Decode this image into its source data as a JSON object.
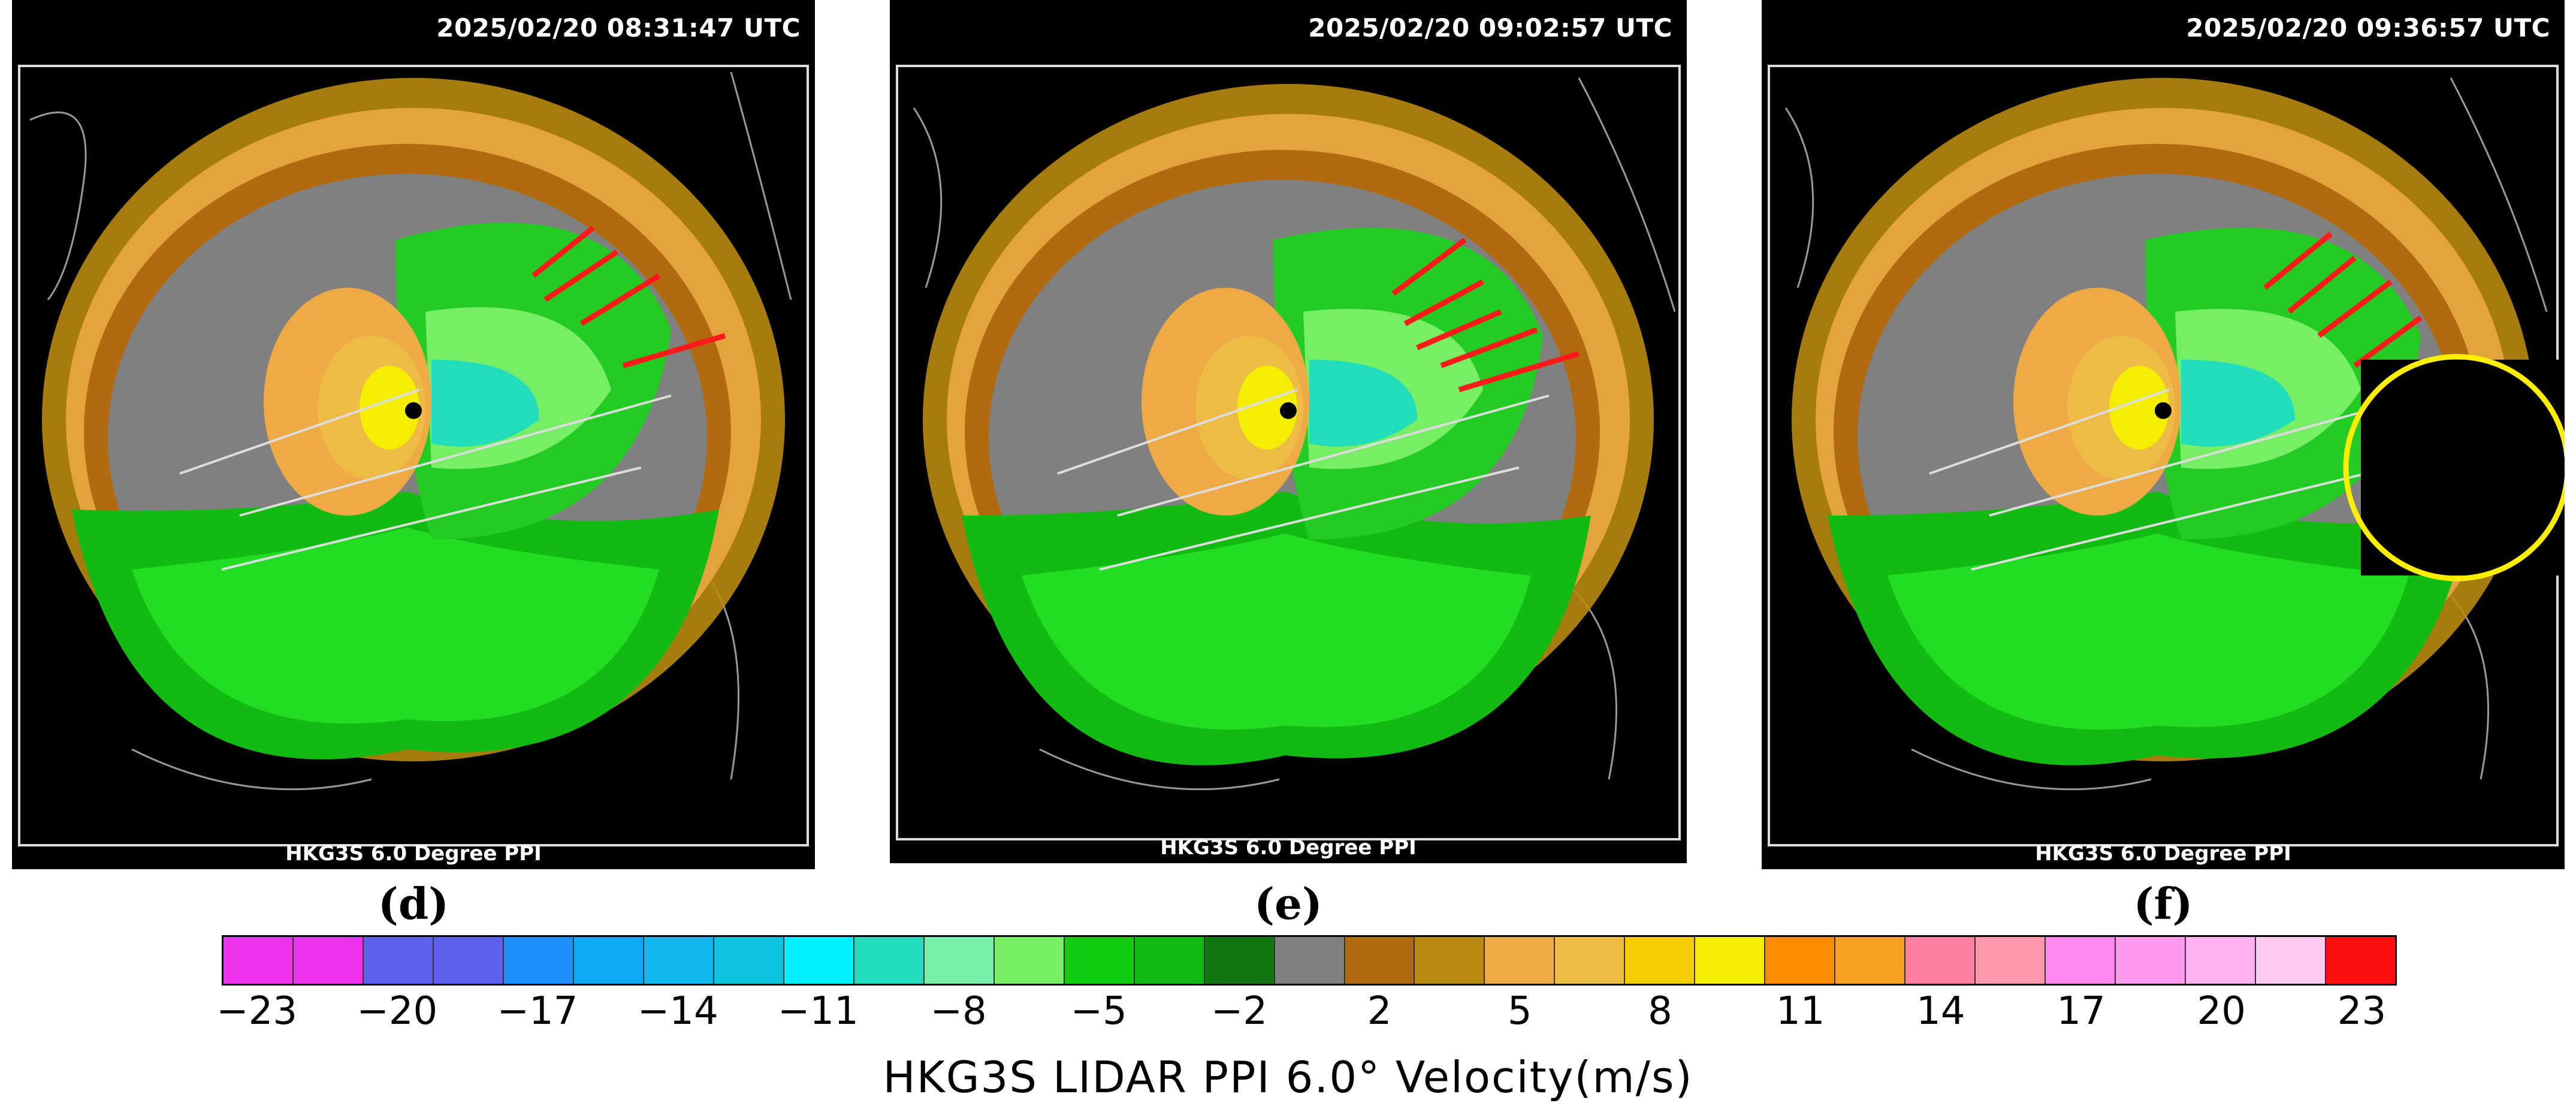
{
  "panels": [
    {
      "id": "d",
      "timestamp": "2025/02/20  08:31:47 UTC",
      "caption": "HKG3S 6.0 Degree PPI",
      "label": "(d)"
    },
    {
      "id": "e",
      "timestamp": "2025/02/20  09:02:57 UTC",
      "caption": "HKG3S 6.0 Degree PPI",
      "label": "(e)"
    },
    {
      "id": "f",
      "timestamp": "2025/02/20  09:36:57 UTC",
      "caption": "HKG3S 6.0 Degree PPI",
      "label": "(f)"
    }
  ],
  "legend": {
    "title": "HKG3S LIDAR PPI 6.0° Velocity(m/s)",
    "colors": [
      "#ee33ee",
      "#ee33ee",
      "#6060ee",
      "#6060ee",
      "#1e90ff",
      "#0faaf5",
      "#10b8ef",
      "#0cc4e0",
      "#00f0ff",
      "#22ddbb",
      "#77f0aa",
      "#77ee66",
      "#11cc11",
      "#11bb11",
      "#117711",
      "#808080",
      "#b06a10",
      "#b88a10",
      "#eeaa44",
      "#eebb44",
      "#f5cc00",
      "#f5ee00",
      "#ff8c00",
      "#f5a020",
      "#ff80a0",
      "#ff99aa",
      "#ff88ee",
      "#ff99ee",
      "#ffb0f0",
      "#ffc8f0",
      "#ff1010"
    ],
    "tick_labels": [
      "−23",
      "−20",
      "−17",
      "−14",
      "−11",
      "−8",
      "−5",
      "−2",
      "2",
      "5",
      "8",
      "11",
      "14",
      "17",
      "20",
      "23"
    ]
  }
}
